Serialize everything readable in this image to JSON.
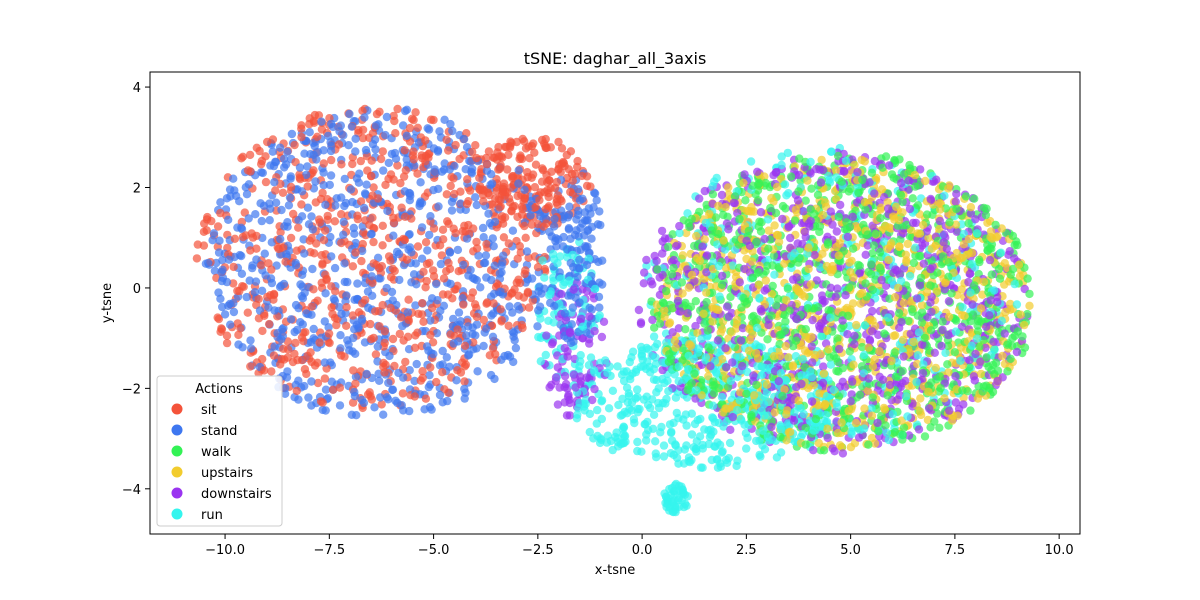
{
  "chart_data": {
    "type": "scatter",
    "title": "tSNE: daghar_all_3axis",
    "xlabel": "x-tsne",
    "ylabel": "y-tsne",
    "xlim": [
      -11.8,
      10.5
    ],
    "ylim": [
      -4.9,
      4.3
    ],
    "x_ticks": [
      -10.0,
      -7.5,
      -5.0,
      -2.5,
      0.0,
      2.5,
      5.0,
      7.5,
      10.0
    ],
    "x_tick_labels": [
      "−10.0",
      "−7.5",
      "−5.0",
      "−2.5",
      "0.0",
      "2.5",
      "5.0",
      "7.5",
      "10.0"
    ],
    "y_ticks": [
      -4,
      -2,
      0,
      2,
      4
    ],
    "y_tick_labels": [
      "−4",
      "−2",
      "0",
      "2",
      "4"
    ],
    "grid": false,
    "legend": {
      "title": "Actions",
      "placement": "lower-left",
      "entries": [
        "sit",
        "stand",
        "walk",
        "upstairs",
        "downstairs",
        "run"
      ]
    },
    "series": [
      {
        "name": "sit",
        "color": "#f4533a",
        "clusters": [
          {
            "shape": "ellipse",
            "center": [
              -6.5,
              0.6
            ],
            "radius": [
              4.2,
              3.0
            ],
            "weight": 0.8
          },
          {
            "shape": "ellipse",
            "center": [
              -2.6,
              2.1
            ],
            "radius": [
              1.4,
              0.9
            ],
            "weight": 0.2
          }
        ]
      },
      {
        "name": "stand",
        "color": "#3e77f0",
        "clusters": [
          {
            "shape": "ellipse",
            "center": [
              -6.3,
              0.5
            ],
            "radius": [
              4.2,
              3.1
            ],
            "weight": 0.85
          },
          {
            "shape": "ellipse",
            "center": [
              -1.6,
              0.6
            ],
            "radius": [
              0.7,
              1.8
            ],
            "weight": 0.15
          }
        ]
      },
      {
        "name": "walk",
        "color": "#33f255",
        "clusters": [
          {
            "shape": "ellipse",
            "center": [
              4.8,
              -0.3
            ],
            "radius": [
              4.6,
              3.0
            ],
            "weight": 1.0
          }
        ]
      },
      {
        "name": "upstairs",
        "color": "#f2cc2e",
        "clusters": [
          {
            "shape": "ellipse",
            "center": [
              4.8,
              -0.3
            ],
            "radius": [
              4.5,
              2.9
            ],
            "weight": 1.0
          }
        ]
      },
      {
        "name": "downstairs",
        "color": "#9a34f0",
        "clusters": [
          {
            "shape": "ellipse",
            "center": [
              4.6,
              -0.3
            ],
            "radius": [
              4.7,
              3.0
            ],
            "weight": 0.9
          },
          {
            "shape": "ellipse",
            "center": [
              -1.6,
              -1.2
            ],
            "radius": [
              0.8,
              1.4
            ],
            "weight": 0.1
          }
        ]
      },
      {
        "name": "run",
        "color": "#34f5ee",
        "clusters": [
          {
            "shape": "ellipse",
            "center": [
              1.5,
              -2.3
            ],
            "radius": [
              3.2,
              1.3
            ],
            "weight": 0.5
          },
          {
            "shape": "ellipse",
            "center": [
              4.5,
              -0.2
            ],
            "radius": [
              4.5,
              3.0
            ],
            "weight": 0.35
          },
          {
            "shape": "ellipse",
            "center": [
              0.8,
              -4.2
            ],
            "radius": [
              0.3,
              0.3
            ],
            "weight": 0.05
          },
          {
            "shape": "ellipse",
            "center": [
              -1.8,
              -0.5
            ],
            "radius": [
              0.8,
              1.6
            ],
            "weight": 0.1
          }
        ]
      }
    ]
  }
}
